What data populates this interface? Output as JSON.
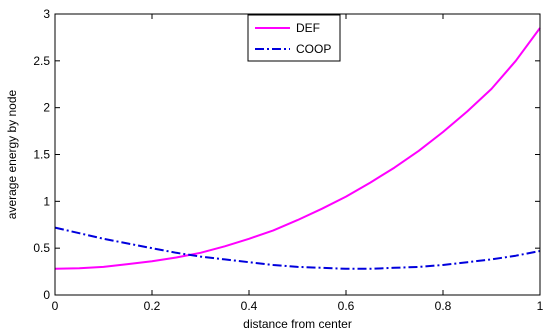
{
  "chart_data": {
    "type": "line",
    "title": "",
    "xlabel": "distance from center",
    "ylabel": "average energy by node",
    "xlim": [
      0,
      1
    ],
    "ylim": [
      0,
      3
    ],
    "x_ticks": [
      0,
      0.2,
      0.4,
      0.6,
      0.8,
      1
    ],
    "x_tick_labels": [
      "0",
      "0.2",
      "0.4",
      "0.6",
      "0.8",
      "1"
    ],
    "y_ticks": [
      0,
      0.5,
      1,
      1.5,
      2,
      2.5,
      3
    ],
    "y_tick_labels": [
      "0",
      "0.5",
      "1",
      "1.5",
      "2",
      "2.5",
      "3"
    ],
    "grid": false,
    "legend_position": "top-center",
    "series": [
      {
        "name": "DEF",
        "color": "#ff00ff",
        "line_style": "solid",
        "x": [
          0,
          0.05,
          0.1,
          0.15,
          0.2,
          0.25,
          0.3,
          0.35,
          0.4,
          0.45,
          0.5,
          0.55,
          0.6,
          0.65,
          0.7,
          0.75,
          0.8,
          0.85,
          0.9,
          0.95,
          1
        ],
        "y": [
          0.28,
          0.285,
          0.3,
          0.33,
          0.36,
          0.4,
          0.45,
          0.52,
          0.6,
          0.69,
          0.8,
          0.92,
          1.05,
          1.2,
          1.36,
          1.54,
          1.74,
          1.96,
          2.2,
          2.5,
          2.85
        ]
      },
      {
        "name": "COOP",
        "color": "#0000dd",
        "line_style": "dashdot",
        "x": [
          0,
          0.05,
          0.1,
          0.15,
          0.2,
          0.25,
          0.3,
          0.35,
          0.4,
          0.45,
          0.5,
          0.55,
          0.6,
          0.65,
          0.7,
          0.75,
          0.8,
          0.85,
          0.9,
          0.95,
          1
        ],
        "y": [
          0.72,
          0.66,
          0.6,
          0.55,
          0.5,
          0.45,
          0.41,
          0.38,
          0.35,
          0.32,
          0.3,
          0.29,
          0.28,
          0.28,
          0.29,
          0.3,
          0.32,
          0.35,
          0.38,
          0.42,
          0.47
        ]
      }
    ]
  }
}
